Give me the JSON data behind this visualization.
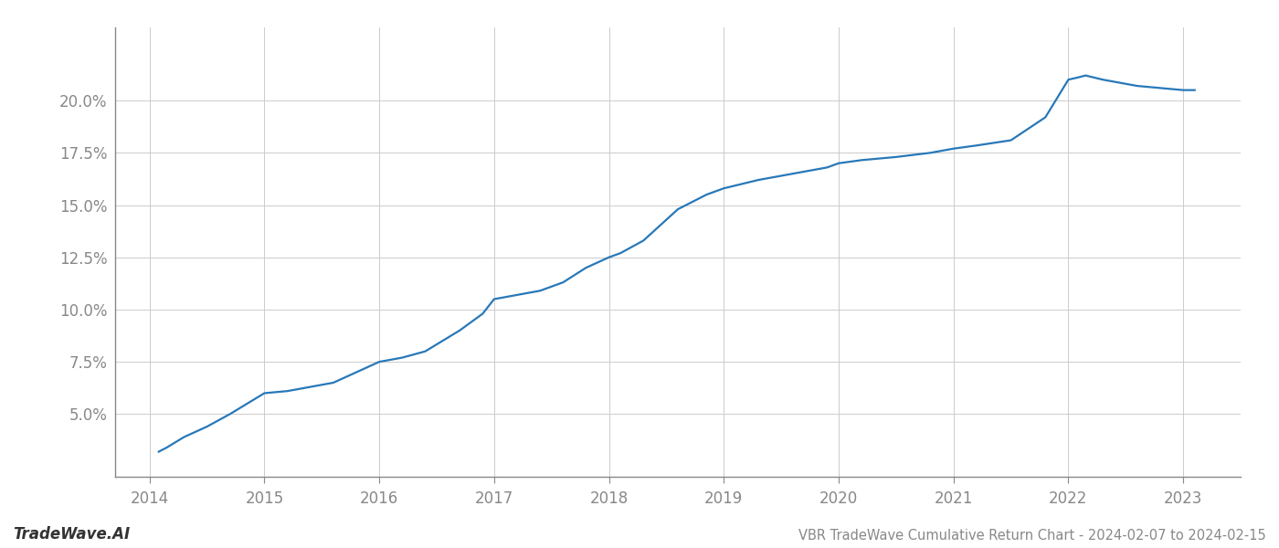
{
  "title": "VBR TradeWave Cumulative Return Chart - 2024-02-07 to 2024-02-15",
  "watermark": "TradeWave.AI",
  "line_color": "#2878b8",
  "background_color": "#ffffff",
  "x_values": [
    2014.08,
    2014.15,
    2014.3,
    2014.5,
    2014.7,
    2014.85,
    2015.0,
    2015.2,
    2015.4,
    2015.6,
    2015.8,
    2016.0,
    2016.2,
    2016.4,
    2016.7,
    2016.9,
    2017.0,
    2017.2,
    2017.4,
    2017.6,
    2017.8,
    2018.0,
    2018.1,
    2018.3,
    2018.6,
    2018.85,
    2019.0,
    2019.15,
    2019.3,
    2019.5,
    2019.7,
    2019.9,
    2020.0,
    2020.2,
    2020.5,
    2020.8,
    2021.0,
    2021.2,
    2021.5,
    2021.8,
    2022.0,
    2022.08,
    2022.15,
    2022.3,
    2022.6,
    2022.9,
    2023.0,
    2023.1
  ],
  "y_values": [
    3.2,
    3.4,
    3.9,
    4.4,
    5.0,
    5.5,
    6.0,
    6.1,
    6.3,
    6.5,
    7.0,
    7.5,
    7.7,
    8.0,
    9.0,
    9.8,
    10.5,
    10.7,
    10.9,
    11.3,
    12.0,
    12.5,
    12.7,
    13.3,
    14.8,
    15.5,
    15.8,
    16.0,
    16.2,
    16.4,
    16.6,
    16.8,
    17.0,
    17.15,
    17.3,
    17.5,
    17.7,
    17.85,
    18.1,
    19.2,
    21.0,
    21.1,
    21.2,
    21.0,
    20.7,
    20.55,
    20.5,
    20.5
  ],
  "yticks": [
    5.0,
    7.5,
    10.0,
    12.5,
    15.0,
    17.5,
    20.0
  ],
  "xticks": [
    2014,
    2015,
    2016,
    2017,
    2018,
    2019,
    2020,
    2021,
    2022,
    2023
  ],
  "ylim": [
    2.0,
    23.5
  ],
  "xlim": [
    2013.7,
    2023.5
  ],
  "grid_color": "#cccccc",
  "tick_color": "#888888",
  "spine_color": "#888888",
  "line_width": 1.6,
  "title_fontsize": 10.5,
  "tick_fontsize": 12,
  "watermark_fontsize": 12
}
